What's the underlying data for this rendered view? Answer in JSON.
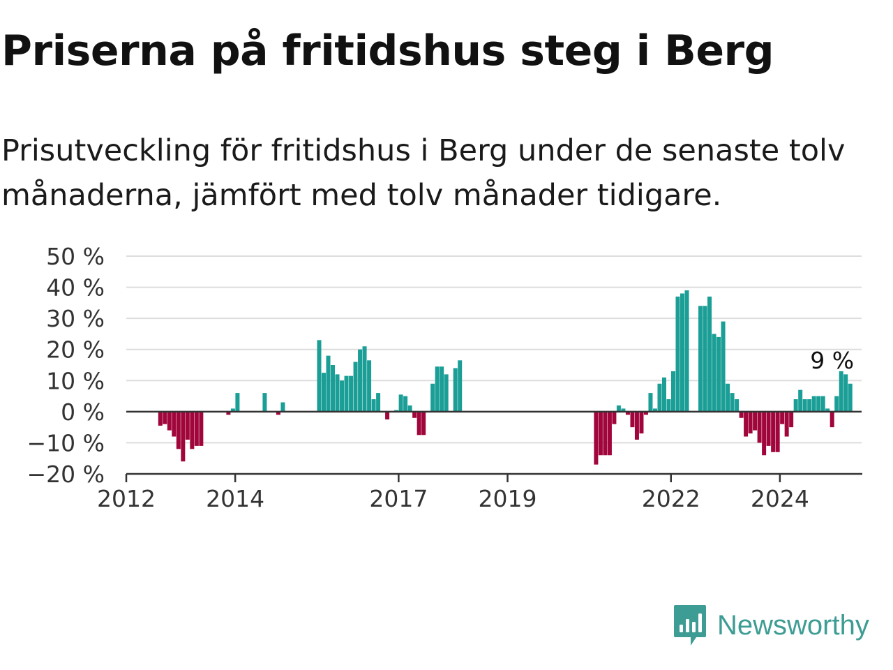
{
  "header": {
    "title": "Priserna på fritidshus steg i Berg",
    "subtitle": "Prisutveckling för fritidshus i Berg under de senaste tolv månaderna, jämfört med tolv månader tidigare."
  },
  "brand": {
    "name": "Newsworthy",
    "icon": "newsworthy-logo-icon",
    "color": "#3d9c93"
  },
  "chart_data": {
    "type": "bar",
    "title": "Priserna på fritidshus steg i Berg",
    "xlabel": "",
    "ylabel": "",
    "ylim": [
      -20,
      50
    ],
    "yticks": [
      -20,
      -10,
      0,
      10,
      20,
      30,
      40,
      50
    ],
    "ytick_labels": [
      "−20 %",
      "−10 %",
      "0 %",
      "10 %",
      "20 %",
      "30 %",
      "40 %",
      "50 %"
    ],
    "xlim": [
      "2012-01",
      "2025-07"
    ],
    "xticks": [
      "2012",
      "2014",
      "2017",
      "2019",
      "2022",
      "2024"
    ],
    "grid": true,
    "colors": {
      "positive": "#1a9e96",
      "negative": "#a0063b",
      "grid": "#dddddd",
      "axis": "#333333"
    },
    "annotation": {
      "x": "2024-12",
      "text": "9 %"
    },
    "bars": [
      [
        "2012-08",
        -4.5
      ],
      [
        "2012-09",
        -4
      ],
      [
        "2012-10",
        -6
      ],
      [
        "2012-11",
        -8
      ],
      [
        "2012-12",
        -12
      ],
      [
        "2013-01",
        -16
      ],
      [
        "2013-02",
        -9
      ],
      [
        "2013-03",
        -12
      ],
      [
        "2013-04",
        -11
      ],
      [
        "2013-05",
        -11
      ],
      [
        "2013-11",
        -1
      ],
      [
        "2013-12",
        1
      ],
      [
        "2014-01",
        6
      ],
      [
        "2014-07",
        6
      ],
      [
        "2014-10",
        -1
      ],
      [
        "2014-11",
        3
      ],
      [
        "2015-07",
        23
      ],
      [
        "2015-08",
        12.5
      ],
      [
        "2015-09",
        18
      ],
      [
        "2015-10",
        15
      ],
      [
        "2015-11",
        12
      ],
      [
        "2015-12",
        10
      ],
      [
        "2016-01",
        11.5
      ],
      [
        "2016-02",
        11.5
      ],
      [
        "2016-03",
        16
      ],
      [
        "2016-04",
        20
      ],
      [
        "2016-05",
        21
      ],
      [
        "2016-06",
        16.5
      ],
      [
        "2016-07",
        4
      ],
      [
        "2016-08",
        6
      ],
      [
        "2016-10",
        -2.5
      ],
      [
        "2016-12",
        0.5
      ],
      [
        "2017-01",
        5.5
      ],
      [
        "2017-02",
        5
      ],
      [
        "2017-03",
        2
      ],
      [
        "2017-04",
        -2
      ],
      [
        "2017-05",
        -7.5
      ],
      [
        "2017-06",
        -7.5
      ],
      [
        "2017-08",
        9
      ],
      [
        "2017-09",
        14.5
      ],
      [
        "2017-10",
        14.5
      ],
      [
        "2017-11",
        12
      ],
      [
        "2018-01",
        14
      ],
      [
        "2018-02",
        16.5
      ],
      [
        "2020-08",
        -17
      ],
      [
        "2020-09",
        -14
      ],
      [
        "2020-10",
        -14
      ],
      [
        "2020-11",
        -14
      ],
      [
        "2020-12",
        -4
      ],
      [
        "2021-01",
        2
      ],
      [
        "2021-02",
        1
      ],
      [
        "2021-03",
        -1
      ],
      [
        "2021-04",
        -5
      ],
      [
        "2021-05",
        -9
      ],
      [
        "2021-06",
        -7
      ],
      [
        "2021-07",
        -1
      ],
      [
        "2021-08",
        6
      ],
      [
        "2021-09",
        1
      ],
      [
        "2021-10",
        9
      ],
      [
        "2021-11",
        11
      ],
      [
        "2021-12",
        4
      ],
      [
        "2022-01",
        13
      ],
      [
        "2022-02",
        37
      ],
      [
        "2022-03",
        38
      ],
      [
        "2022-04",
        39
      ],
      [
        "2022-07",
        34
      ],
      [
        "2022-08",
        34
      ],
      [
        "2022-09",
        37
      ],
      [
        "2022-10",
        25
      ],
      [
        "2022-11",
        24
      ],
      [
        "2022-12",
        29
      ],
      [
        "2023-01",
        9
      ],
      [
        "2023-02",
        6
      ],
      [
        "2023-03",
        4
      ],
      [
        "2023-04",
        -2
      ],
      [
        "2023-05",
        -8
      ],
      [
        "2023-06",
        -7
      ],
      [
        "2023-07",
        -6
      ],
      [
        "2023-08",
        -10
      ],
      [
        "2023-09",
        -14
      ],
      [
        "2023-10",
        -11
      ],
      [
        "2023-11",
        -13
      ],
      [
        "2023-12",
        -13
      ],
      [
        "2024-01",
        -4
      ],
      [
        "2024-02",
        -8
      ],
      [
        "2024-03",
        -5
      ],
      [
        "2024-04",
        4
      ],
      [
        "2024-05",
        7
      ],
      [
        "2024-06",
        4
      ],
      [
        "2024-07",
        4
      ],
      [
        "2024-08",
        5
      ],
      [
        "2024-09",
        5
      ],
      [
        "2024-10",
        5
      ],
      [
        "2024-11",
        1
      ],
      [
        "2024-12",
        -5
      ],
      [
        "2025-01",
        5
      ],
      [
        "2025-02",
        13
      ],
      [
        "2025-03",
        12
      ],
      [
        "2025-04",
        9
      ]
    ]
  }
}
